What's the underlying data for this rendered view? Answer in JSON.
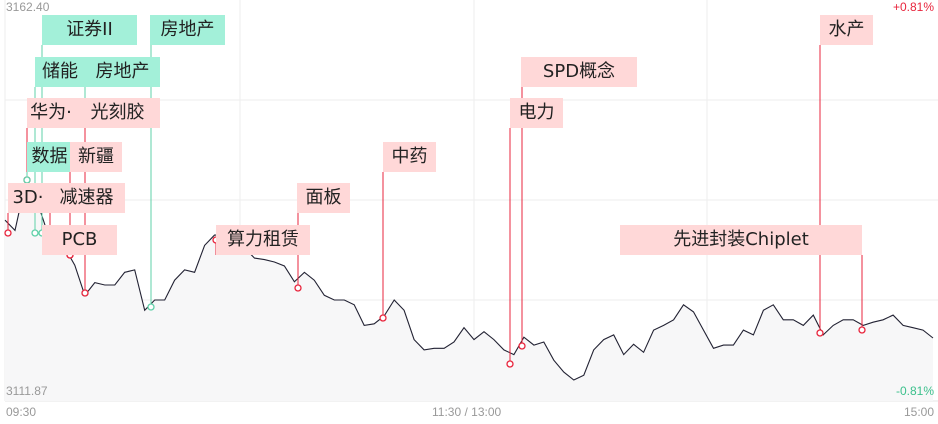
{
  "chart_data": {
    "type": "line",
    "title": "",
    "y_axis": {
      "max_label": "3162.40",
      "min_label": "3111.87",
      "ylim": [
        3111.87,
        3162.4
      ]
    },
    "right_axis": {
      "max_label": "+0.81%",
      "min_label": "-0.81%"
    },
    "x_ticks": [
      "09:30",
      "11:30 / 13:00",
      "15:00"
    ],
    "grid": true,
    "series": [
      {
        "values": [
          3134.6,
          3133.3,
          3139.0,
          3137.8,
          3134.0,
          3130.8,
          3131.1,
          3128.9,
          3125.1,
          3126.7,
          3126.4,
          3126.4,
          3128.0,
          3128.3,
          3123.2,
          3124.5,
          3124.5,
          3127.0,
          3128.3,
          3128.0,
          3131.4,
          3132.7,
          3132.7,
          3132.3,
          3131.1,
          3129.8,
          3129.6,
          3129.3,
          3128.8,
          3126.8,
          3128.0,
          3127.0,
          3125.1,
          3124.5,
          3124.5,
          3123.9,
          3121.3,
          3121.5,
          3122.5,
          3124.5,
          3123.2,
          3119.5,
          3118.2,
          3118.4,
          3118.4,
          3119.2,
          3121.0,
          3119.5,
          3120.5,
          3119.5,
          3118.2,
          3117.6,
          3119.8,
          3118.8,
          3119.2,
          3116.9,
          3115.4,
          3114.4,
          3115.0,
          3118.2,
          3119.5,
          3120.1,
          3117.6,
          3118.9,
          3117.9,
          3120.7,
          3121.3,
          3122.0,
          3123.9,
          3123.0,
          3120.7,
          3118.4,
          3118.8,
          3118.8,
          3120.7,
          3120.1,
          3123.2,
          3123.9,
          3122.0,
          3122.0,
          3121.3,
          3122.6,
          3120.1,
          3121.3,
          3122.0,
          3122.0,
          3121.3,
          3121.7,
          3122.0,
          3122.6,
          3121.3,
          3121.0,
          3120.7,
          3119.7
        ],
        "color": "#222233"
      }
    ],
    "annotations": [
      {
        "label": "证券II",
        "kind": "green"
      },
      {
        "label": "房地产",
        "kind": "green"
      },
      {
        "label": "储能",
        "kind": "green"
      },
      {
        "label": "房地产",
        "kind": "green"
      },
      {
        "label": "华为·",
        "kind": "red"
      },
      {
        "label": "光刻胶",
        "kind": "red"
      },
      {
        "label": "数据",
        "kind": "green"
      },
      {
        "label": "新疆",
        "kind": "red"
      },
      {
        "label": "3D·",
        "kind": "red"
      },
      {
        "label": "减速器",
        "kind": "red"
      },
      {
        "label": "PCB",
        "kind": "red"
      },
      {
        "label": "算力租赁",
        "kind": "red"
      },
      {
        "label": "面板",
        "kind": "red"
      },
      {
        "label": "中药",
        "kind": "red"
      },
      {
        "label": "电力",
        "kind": "red"
      },
      {
        "label": "SPD概念",
        "kind": "red"
      },
      {
        "label": "水产",
        "kind": "red"
      },
      {
        "label": "先进封装Chiplet",
        "kind": "red"
      }
    ],
    "colors": {
      "up": "#e8243c",
      "down": "#3cc08c",
      "red_tag": "#ffd8d8",
      "green_tag": "#a3f0d9"
    }
  }
}
